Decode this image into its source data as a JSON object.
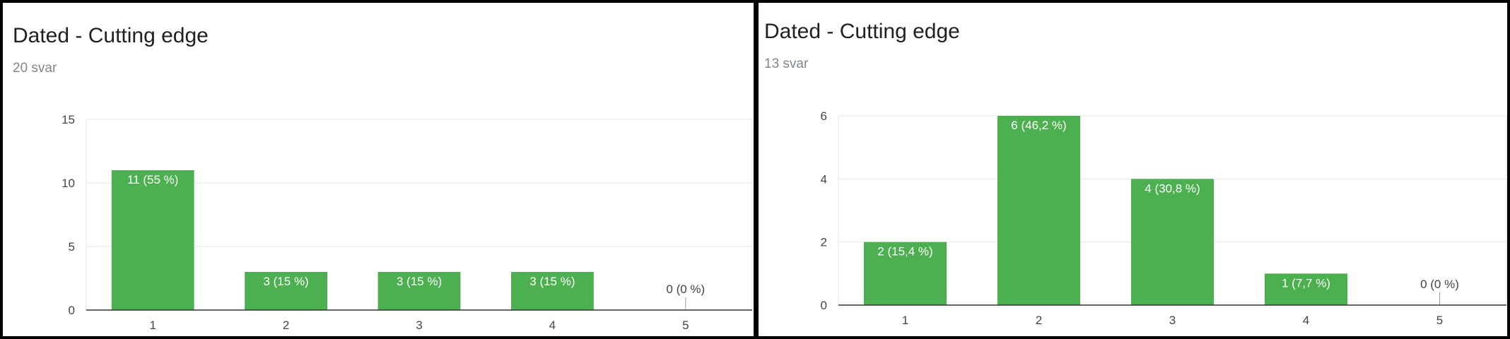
{
  "chart_data": [
    {
      "type": "bar",
      "title": "Dated - Cutting edge",
      "subtitle": "20 svar",
      "categories": [
        "1",
        "2",
        "3",
        "4",
        "5"
      ],
      "values": [
        11,
        3,
        3,
        3,
        0
      ],
      "data_labels": [
        "11 (55 %)",
        "3 (15 %)",
        "3 (15 %)",
        "3 (15 %)",
        "0 (0 %)"
      ],
      "yticks": [
        0,
        5,
        10,
        15
      ],
      "ylim": [
        0,
        15
      ],
      "grid": true,
      "bar_color": "#4caf50"
    },
    {
      "type": "bar",
      "title": "Dated - Cutting edge",
      "subtitle": "13 svar",
      "categories": [
        "1",
        "2",
        "3",
        "4",
        "5"
      ],
      "values": [
        2,
        6,
        4,
        1,
        0
      ],
      "data_labels": [
        "2 (15,4 %)",
        "6 (46,2 %)",
        "4 (30,8 %)",
        "1 (7,7 %)",
        "0 (0 %)"
      ],
      "yticks": [
        0,
        2,
        4,
        6
      ],
      "ylim": [
        0,
        6
      ],
      "grid": true,
      "bar_color": "#4caf50"
    }
  ]
}
